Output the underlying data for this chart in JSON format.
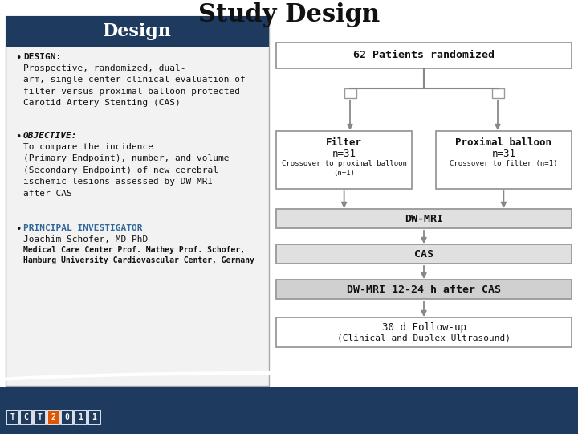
{
  "title": "Study Design",
  "title_fontsize": 22,
  "bg_color": "#ffffff",
  "header_bg": "#1e3a5f",
  "header_text": "Design",
  "header_text_color": "#ffffff",
  "header_fontsize": 16,
  "left_bg": "#f2f2f2",
  "left_border": "#aaaaaa",
  "bullet1_label": "DESIGN:",
  "bullet1_body": "Prospective, randomized, dual-\narm, single-center clinical evaluation of\nfilter versus proximal balloon protected\nCarotid Artery Stenting (CAS)",
  "bullet2_label": "OBJECTIVE:",
  "bullet2_body": "To compare the incidence\n(Primary Endpoint), number, and volume\n(Secondary Endpoint) of new cerebral\nischemic lesions assessed by DW-MRI\nafter CAS",
  "bullet3_label": "PRINCIPAL INVESTIGATOR",
  "bullet3_sub1": "Joachim Schofer, MD PhD",
  "bullet3_sub2": "Medical Care Center Prof. Mathey Prof. Schofer,\nHamburg University Cardiovascular Center, Germany",
  "box_top_text": "62 Patients randomized",
  "box_filter_line1": "Filter",
  "box_filter_line2": "n=31",
  "box_filter_sub": "Crossover to proximal balloon\n(n=1)",
  "box_proximal_line1": "Proximal balloon",
  "box_proximal_line2": "n=31",
  "box_proximal_sub": "Crossover to filter (n=1)",
  "box_dwmri": "DW-MRI",
  "box_cas": "CAS",
  "box_dwmri2": "DW-MRI 12-24 h after CAS",
  "box_followup_line1": "30 d Follow-up",
  "box_followup_line2": "(Clinical and Duplex Ultrasound)",
  "footer_bg": "#1e3a5f",
  "tct_letters": [
    "T",
    "C",
    "T"
  ],
  "tct_num": [
    "2",
    "0",
    "1",
    "1"
  ],
  "tct2_color": "#e05500",
  "arrow_color": "#888888",
  "box_edge": "#999999",
  "box_fill_light": "#e0e0e0",
  "box_fill_mid": "#d0d0d0"
}
